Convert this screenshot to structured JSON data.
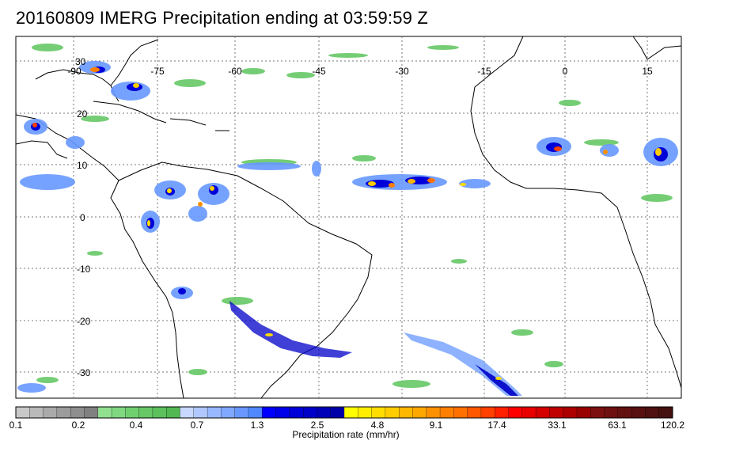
{
  "title": "20160809 IMERG Precipitation ending at 03:59:59 Z",
  "map": {
    "lon_labels": [
      "-90",
      "-75",
      "-60",
      "-45",
      "-30",
      "-15",
      "0",
      "15"
    ],
    "lat_labels": [
      "30",
      "20",
      "10",
      "0",
      "-10",
      "-20",
      "-30"
    ],
    "land_color": "#ffffff",
    "grid": true
  },
  "colorbar": {
    "tick_labels": [
      "0.1",
      "0.2",
      "0.4",
      "0.7",
      "1.3",
      "2.5",
      "4.8",
      "9.1",
      "17.4",
      "33.1",
      "63.1",
      "120.2"
    ],
    "caption": "Precipitation rate (mm/hr)",
    "colors": [
      "#c8c8c8",
      "#b9b9b9",
      "#aaaaaa",
      "#9c9c9c",
      "#8e8e8e",
      "#808080",
      "#90e090",
      "#80d880",
      "#70d070",
      "#66c866",
      "#5cc05c",
      "#52b852",
      "#c8d8ff",
      "#b0c8ff",
      "#98b8ff",
      "#80a8ff",
      "#6898ff",
      "#5088ff",
      "#0000ff",
      "#0000e8",
      "#0000d8",
      "#0000c8",
      "#0000b8",
      "#0000a8",
      "#ffff00",
      "#ffee00",
      "#ffdd00",
      "#ffcc00",
      "#ffb800",
      "#ffa800",
      "#ff9000",
      "#ff8000",
      "#ff7000",
      "#ff5800",
      "#ff4000",
      "#ff2000",
      "#ff0000",
      "#e80000",
      "#d40000",
      "#c00000",
      "#ac0000",
      "#980000",
      "#7c1010",
      "#6e1010",
      "#621010",
      "#581010",
      "#4e1010",
      "#441010"
    ]
  }
}
